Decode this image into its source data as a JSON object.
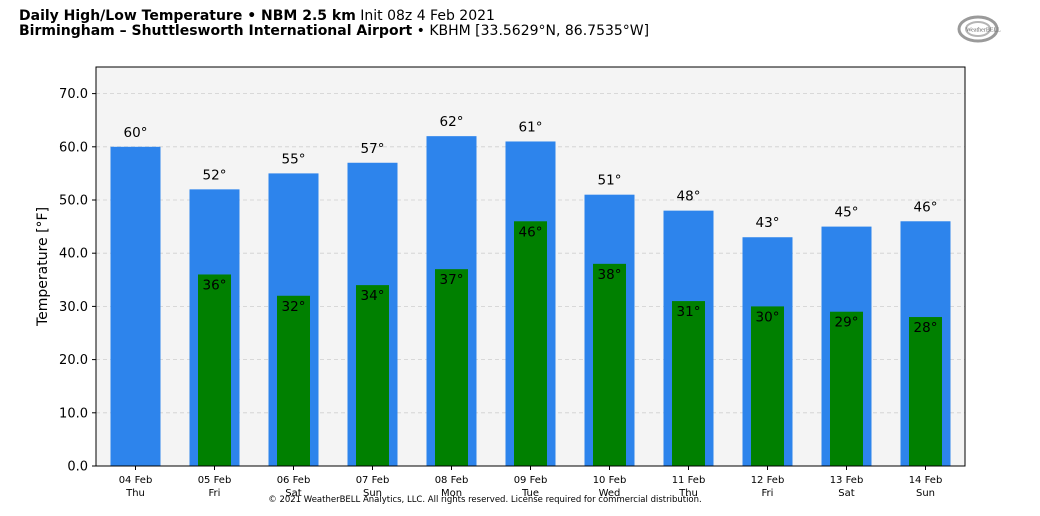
{
  "header": {
    "title_bold": "Daily High/Low Temperature • NBM 2.5 km",
    "init": "Init 08z 4 Feb 2021",
    "location_bold": "Birmingham – Shuttlesworth International Airport",
    "location_detail": "• KBHM [33.5629°N, 86.7535°W]"
  },
  "logo": {
    "name": "weatherbell-logo",
    "text": "WeatherBELL"
  },
  "footer": {
    "copyright": "© 2021 WeatherBELL Analytics, LLC. All rights reserved. License required for commercial distribution."
  },
  "colors": {
    "high": "#2d84ec",
    "low": "#008000",
    "plot_bg": "#f4f4f4"
  },
  "chart_data": {
    "type": "bar",
    "ylabel": "Temperature [°F]",
    "ylim": [
      0,
      75
    ],
    "yticks": [
      "0.0",
      "10.0",
      "20.0",
      "30.0",
      "40.0",
      "50.0",
      "60.0",
      "70.0"
    ],
    "grid": true,
    "categories": [
      {
        "date": "04 Feb",
        "day": "Thu"
      },
      {
        "date": "05 Feb",
        "day": "Fri"
      },
      {
        "date": "06 Feb",
        "day": "Sat"
      },
      {
        "date": "07 Feb",
        "day": "Sun"
      },
      {
        "date": "08 Feb",
        "day": "Mon"
      },
      {
        "date": "09 Feb",
        "day": "Tue"
      },
      {
        "date": "10 Feb",
        "day": "Wed"
      },
      {
        "date": "11 Feb",
        "day": "Thu"
      },
      {
        "date": "12 Feb",
        "day": "Fri"
      },
      {
        "date": "13 Feb",
        "day": "Sat"
      },
      {
        "date": "14 Feb",
        "day": "Sun"
      }
    ],
    "series": [
      {
        "values": [
          60,
          52,
          55,
          57,
          62,
          61,
          51,
          48,
          43,
          45,
          46
        ]
      },
      {
        "values": [
          null,
          36,
          32,
          34,
          37,
          46,
          38,
          31,
          30,
          29,
          28
        ]
      }
    ]
  }
}
